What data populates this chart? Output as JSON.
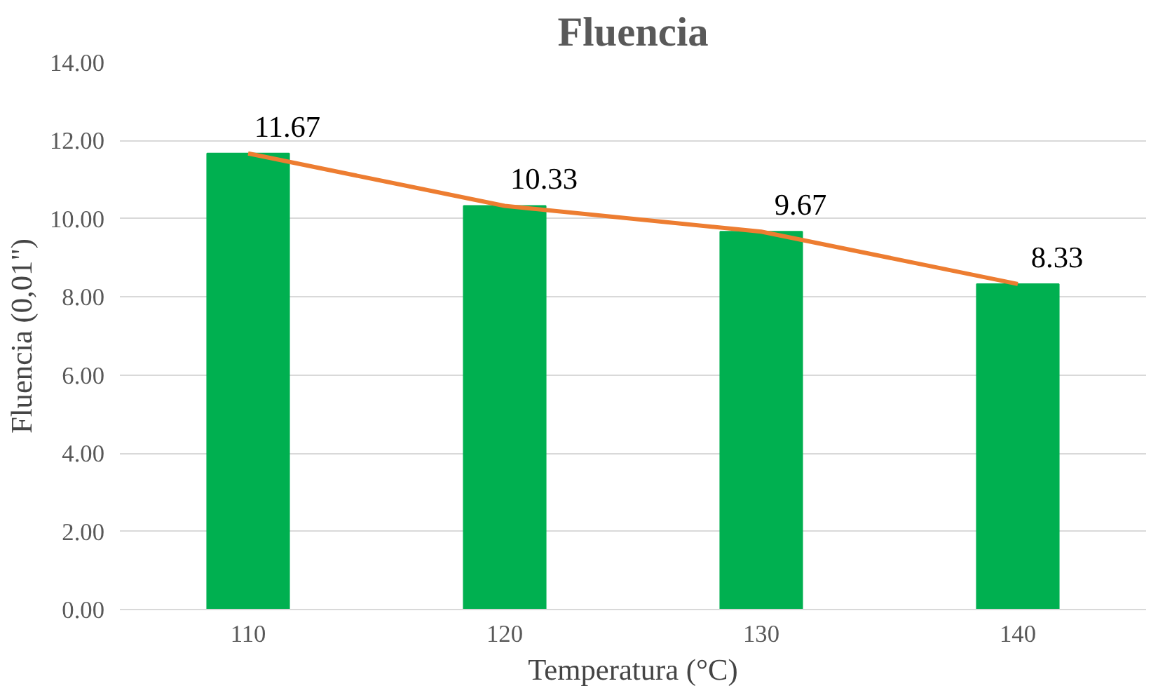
{
  "chart_data": {
    "type": "bar",
    "title": "Fluencia",
    "xlabel": "Temperatura (°C)",
    "ylabel": "Fluencia (0,01\")",
    "categories": [
      "110",
      "120",
      "130",
      "140"
    ],
    "series": [
      {
        "color": "#00b050",
        "values": [
          11.67,
          10.33,
          9.67,
          8.33
        ],
        "data_labels": true
      },
      {
        "type": "line",
        "color": "#ed7d31",
        "values": [
          11.67,
          10.33,
          9.67,
          8.33
        ]
      }
    ],
    "ylim": [
      0,
      14
    ],
    "yticks": [
      {
        "value": 0,
        "label": "0.00"
      },
      {
        "value": 2,
        "label": "2.00"
      },
      {
        "value": 4,
        "label": "4.00"
      },
      {
        "value": 6,
        "label": "6.00"
      },
      {
        "value": 8,
        "label": "8.00"
      },
      {
        "value": 10,
        "label": "10.00"
      },
      {
        "value": 12,
        "label": "12.00"
      },
      {
        "value": 14,
        "label": "14.00"
      }
    ],
    "grid": "y"
  }
}
